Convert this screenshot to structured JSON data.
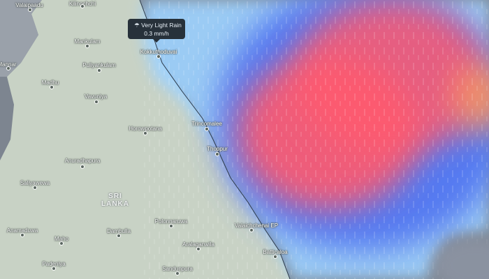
{
  "tooltip": {
    "icon": "rain-cloud-icon",
    "condition": "Very Light Rain",
    "rate": "0.3 mm/h"
  },
  "country": {
    "line1": "SRI",
    "line2": "LANKA"
  },
  "places": [
    "Valaipaadu",
    "Kilinochchi",
    "Mankulam",
    "Puliyankulam",
    "Mannar",
    "Madhu",
    "Vavuniya",
    "Horowpotana",
    "Kokkuthoduvai",
    "Trincomalee",
    "Thoppur",
    "Anuradhapura",
    "Saliyawewa",
    "Anamaduwa",
    "Dambulla",
    "Maho",
    "Polonnaruwa",
    "Valaichchenai EP",
    "Aralaganwila",
    "Batticaloa",
    "Padeniya",
    "Sandunpura"
  ],
  "colors": {
    "sea": "#7d8590",
    "land": "#c8d2c5",
    "rain_light": "#9fd3ff",
    "rain_moderate": "#4a6cf0",
    "rain_heavy": "#ff5a6e",
    "rain_peak": "#ff9a5a"
  }
}
